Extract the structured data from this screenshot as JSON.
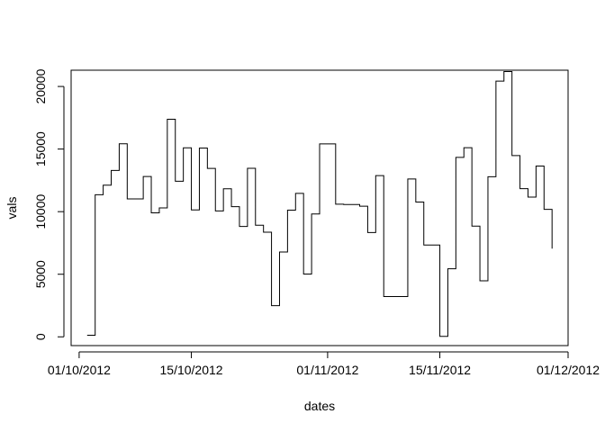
{
  "chart_data": {
    "type": "line",
    "line_style": "steps",
    "xlabel": "dates",
    "ylabel": "vals",
    "x_axis_type": "date",
    "xlim": [
      "2012-09-30",
      "2012-12-01"
    ],
    "ylim": [
      -700,
      21300
    ],
    "x_ticks": [
      {
        "date": "2012-10-01",
        "label": "01/10/2012"
      },
      {
        "date": "2012-10-15",
        "label": "15/10/2012"
      },
      {
        "date": "2012-11-01",
        "label": "01/11/2012"
      },
      {
        "date": "2012-11-15",
        "label": "15/11/2012"
      },
      {
        "date": "2012-12-01",
        "label": "01/12/2012"
      }
    ],
    "y_ticks": [
      {
        "value": 0,
        "label": "0"
      },
      {
        "value": 5000,
        "label": "5000"
      },
      {
        "value": 10000,
        "label": "10000"
      },
      {
        "value": 15000,
        "label": "15000"
      },
      {
        "value": 20000,
        "label": "20000"
      }
    ],
    "frame": true,
    "grid": false,
    "legend": "none",
    "line_color": "#000000",
    "series": [
      {
        "x": [
          "2012-10-02",
          "2012-10-03",
          "2012-10-04",
          "2012-10-05",
          "2012-10-06",
          "2012-10-07",
          "2012-10-08",
          "2012-10-09",
          "2012-10-10",
          "2012-10-11",
          "2012-10-12",
          "2012-10-13",
          "2012-10-14",
          "2012-10-15",
          "2012-10-16",
          "2012-10-17",
          "2012-10-18",
          "2012-10-19",
          "2012-10-20",
          "2012-10-21",
          "2012-10-22",
          "2012-10-23",
          "2012-10-24",
          "2012-10-25",
          "2012-10-26",
          "2012-10-27",
          "2012-10-28",
          "2012-10-29",
          "2012-10-30",
          "2012-10-31",
          "2012-11-01",
          "2012-11-02",
          "2012-11-03",
          "2012-11-04",
          "2012-11-05",
          "2012-11-06",
          "2012-11-07",
          "2012-11-08",
          "2012-11-09",
          "2012-11-10",
          "2012-11-11",
          "2012-11-12",
          "2012-11-13",
          "2012-11-14",
          "2012-11-15",
          "2012-11-16",
          "2012-11-17",
          "2012-11-18",
          "2012-11-19",
          "2012-11-20",
          "2012-11-21",
          "2012-11-22",
          "2012-11-23",
          "2012-11-24",
          "2012-11-25",
          "2012-11-26",
          "2012-11-27",
          "2012-11-28",
          "2012-11-29"
        ],
        "y": [
          126,
          11352,
          12116,
          13294,
          15420,
          11015,
          11015,
          12811,
          9900,
          10304,
          17382,
          12426,
          15098,
          10139,
          15084,
          13452,
          10056,
          11829,
          10395,
          8821,
          13460,
          8918,
          8355,
          2492,
          6778,
          10119,
          11458,
          5018,
          9819,
          15414,
          15414,
          10600,
          10571,
          10571,
          10439,
          8334,
          12883,
          3219,
          3219,
          3219,
          12608,
          10765,
          7336,
          7336,
          41,
          5441,
          14339,
          15110,
          8841,
          4472,
          12787,
          20427,
          21194,
          14478,
          11834,
          11162,
          13646,
          10183,
          7047
        ]
      }
    ]
  }
}
